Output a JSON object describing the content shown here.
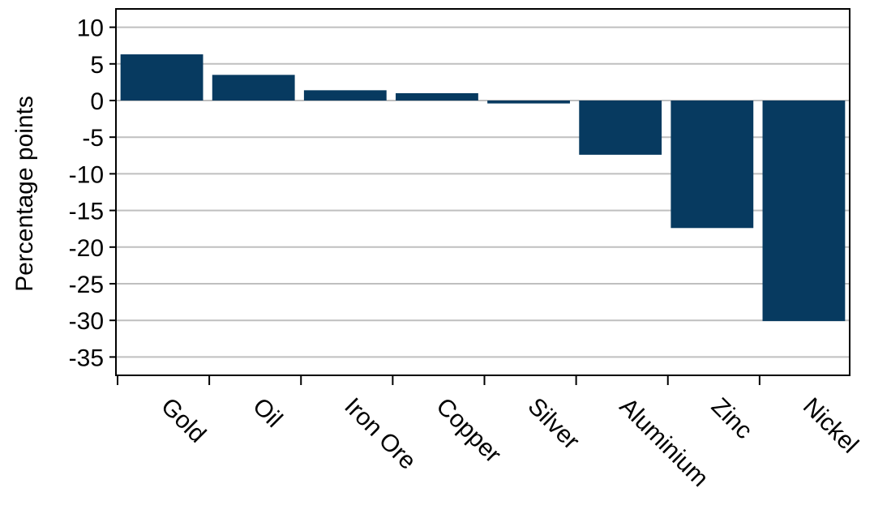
{
  "chart_data": {
    "type": "bar",
    "title": "",
    "xlabel": "",
    "ylabel": "Percentage points",
    "categories": [
      "Gold",
      "Oil",
      "Iron Ore",
      "Copper",
      "Silver",
      "Aluminium",
      "Zinc",
      "Nickel"
    ],
    "values": [
      6.3,
      3.5,
      1.4,
      1.0,
      -0.4,
      -7.4,
      -17.4,
      -30.1
    ],
    "ylim": [
      -37.5,
      12.5
    ],
    "yticks": [
      10,
      5,
      0,
      -5,
      -10,
      -15,
      -20,
      -25,
      -30,
      -35
    ],
    "ytick_labels": [
      "10",
      "5",
      "0",
      "-5",
      "-10",
      "-15",
      "-20",
      "-25",
      "-30",
      "-35"
    ],
    "grid": true,
    "legend": "none",
    "bar_color": "#073a60",
    "grid_color": "#bfbfbf"
  }
}
